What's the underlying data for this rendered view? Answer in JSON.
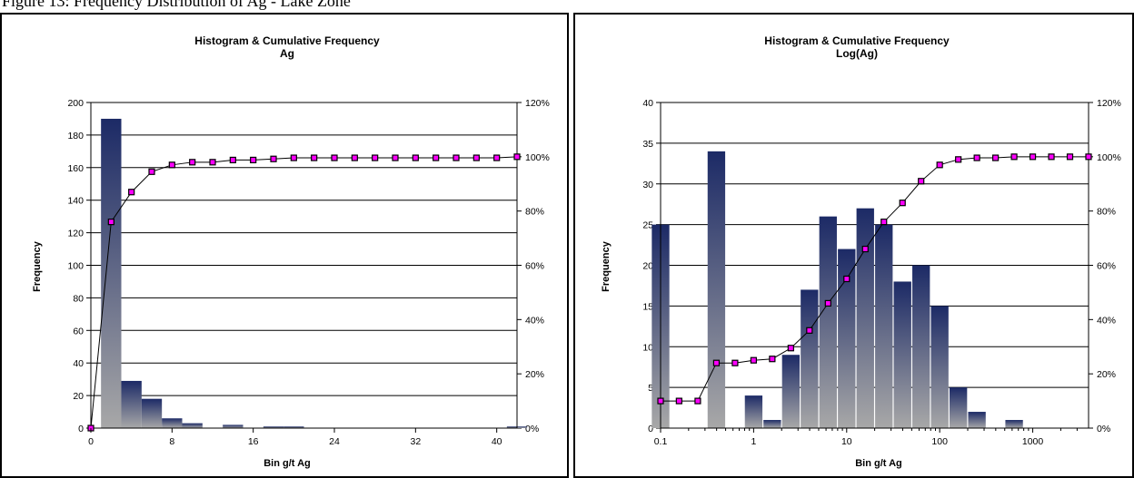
{
  "caption": "Figure 13: Frequency Distribution of Ag - Lake Zone",
  "colors": {
    "bar_top": "#1c2a66",
    "bar_bottom": "#a8a8a8",
    "line": "#000000",
    "marker": "#ff00ff"
  },
  "chart_data": [
    {
      "type": "bar",
      "title": "Histogram & Cumulative Frequency",
      "subtitle": "Ag",
      "xlabel": "Bin g/t Ag",
      "ylabel": "Frequency",
      "ylim": [
        0,
        200
      ],
      "yticks": [
        0,
        20,
        40,
        60,
        80,
        100,
        120,
        140,
        160,
        180,
        200
      ],
      "y2lim": [
        0,
        120
      ],
      "y2ticks": [
        "0%",
        "20%",
        "40%",
        "60%",
        "80%",
        "100%",
        "120%"
      ],
      "xlim": [
        0,
        42
      ],
      "xticks": [
        0,
        8,
        16,
        24,
        32,
        40
      ],
      "grid": true,
      "bin_width": 2,
      "bins": [
        {
          "x": 0,
          "frequency": 0,
          "cumulative_pct": 0
        },
        {
          "x": 2,
          "frequency": 190,
          "cumulative_pct": 76
        },
        {
          "x": 4,
          "frequency": 29,
          "cumulative_pct": 87
        },
        {
          "x": 6,
          "frequency": 18,
          "cumulative_pct": 94.5
        },
        {
          "x": 8,
          "frequency": 6,
          "cumulative_pct": 97
        },
        {
          "x": 10,
          "frequency": 3,
          "cumulative_pct": 98
        },
        {
          "x": 12,
          "frequency": 0,
          "cumulative_pct": 98
        },
        {
          "x": 14,
          "frequency": 2,
          "cumulative_pct": 98.8
        },
        {
          "x": 16,
          "frequency": 0,
          "cumulative_pct": 98.8
        },
        {
          "x": 18,
          "frequency": 1,
          "cumulative_pct": 99.2
        },
        {
          "x": 20,
          "frequency": 1,
          "cumulative_pct": 99.6
        },
        {
          "x": 22,
          "frequency": 0,
          "cumulative_pct": 99.6
        },
        {
          "x": 24,
          "frequency": 0,
          "cumulative_pct": 99.6
        },
        {
          "x": 26,
          "frequency": 0,
          "cumulative_pct": 99.6
        },
        {
          "x": 28,
          "frequency": 0,
          "cumulative_pct": 99.6
        },
        {
          "x": 30,
          "frequency": 0,
          "cumulative_pct": 99.6
        },
        {
          "x": 32,
          "frequency": 0,
          "cumulative_pct": 99.6
        },
        {
          "x": 34,
          "frequency": 0,
          "cumulative_pct": 99.6
        },
        {
          "x": 36,
          "frequency": 0,
          "cumulative_pct": 99.6
        },
        {
          "x": 38,
          "frequency": 0,
          "cumulative_pct": 99.6
        },
        {
          "x": 40,
          "frequency": 0,
          "cumulative_pct": 99.6
        },
        {
          "x": 42,
          "frequency": 1,
          "cumulative_pct": 100
        }
      ]
    },
    {
      "type": "bar",
      "title": "Histogram & Cumulative Frequency",
      "subtitle": "Log(Ag)",
      "xlabel": "Bin g/t Ag",
      "ylabel": "Frequency",
      "xscale": "log",
      "xlim": [
        0.1,
        3981
      ],
      "xticks": [
        0.1,
        1,
        10,
        100,
        1000
      ],
      "ylim": [
        0,
        40
      ],
      "yticks": [
        0,
        5,
        10,
        15,
        20,
        25,
        30,
        35,
        40
      ],
      "y2lim": [
        0,
        120
      ],
      "y2ticks": [
        "0%",
        "20%",
        "40%",
        "60%",
        "80%",
        "100%",
        "120%"
      ],
      "grid": true,
      "bins": [
        {
          "x": 0.1,
          "frequency": 25,
          "cumulative_pct": 10
        },
        {
          "x": 0.158,
          "frequency": 0,
          "cumulative_pct": 10
        },
        {
          "x": 0.251,
          "frequency": 0,
          "cumulative_pct": 10
        },
        {
          "x": 0.398,
          "frequency": 34,
          "cumulative_pct": 24
        },
        {
          "x": 0.631,
          "frequency": 0,
          "cumulative_pct": 24
        },
        {
          "x": 1,
          "frequency": 4,
          "cumulative_pct": 25
        },
        {
          "x": 1.585,
          "frequency": 1,
          "cumulative_pct": 25.5
        },
        {
          "x": 2.512,
          "frequency": 9,
          "cumulative_pct": 29.5
        },
        {
          "x": 3.981,
          "frequency": 17,
          "cumulative_pct": 36
        },
        {
          "x": 6.31,
          "frequency": 26,
          "cumulative_pct": 46
        },
        {
          "x": 10,
          "frequency": 22,
          "cumulative_pct": 55
        },
        {
          "x": 15.85,
          "frequency": 27,
          "cumulative_pct": 66
        },
        {
          "x": 25.12,
          "frequency": 25,
          "cumulative_pct": 76
        },
        {
          "x": 39.81,
          "frequency": 18,
          "cumulative_pct": 83
        },
        {
          "x": 63.1,
          "frequency": 20,
          "cumulative_pct": 91
        },
        {
          "x": 100,
          "frequency": 15,
          "cumulative_pct": 97
        },
        {
          "x": 158.5,
          "frequency": 5,
          "cumulative_pct": 99
        },
        {
          "x": 251.2,
          "frequency": 2,
          "cumulative_pct": 99.6
        },
        {
          "x": 398.1,
          "frequency": 0,
          "cumulative_pct": 99.6
        },
        {
          "x": 631,
          "frequency": 1,
          "cumulative_pct": 100
        },
        {
          "x": 1000,
          "frequency": 0,
          "cumulative_pct": 100
        },
        {
          "x": 1585,
          "frequency": 0,
          "cumulative_pct": 100
        },
        {
          "x": 2512,
          "frequency": 0,
          "cumulative_pct": 100
        },
        {
          "x": 3981,
          "frequency": 0,
          "cumulative_pct": 100
        }
      ]
    }
  ]
}
